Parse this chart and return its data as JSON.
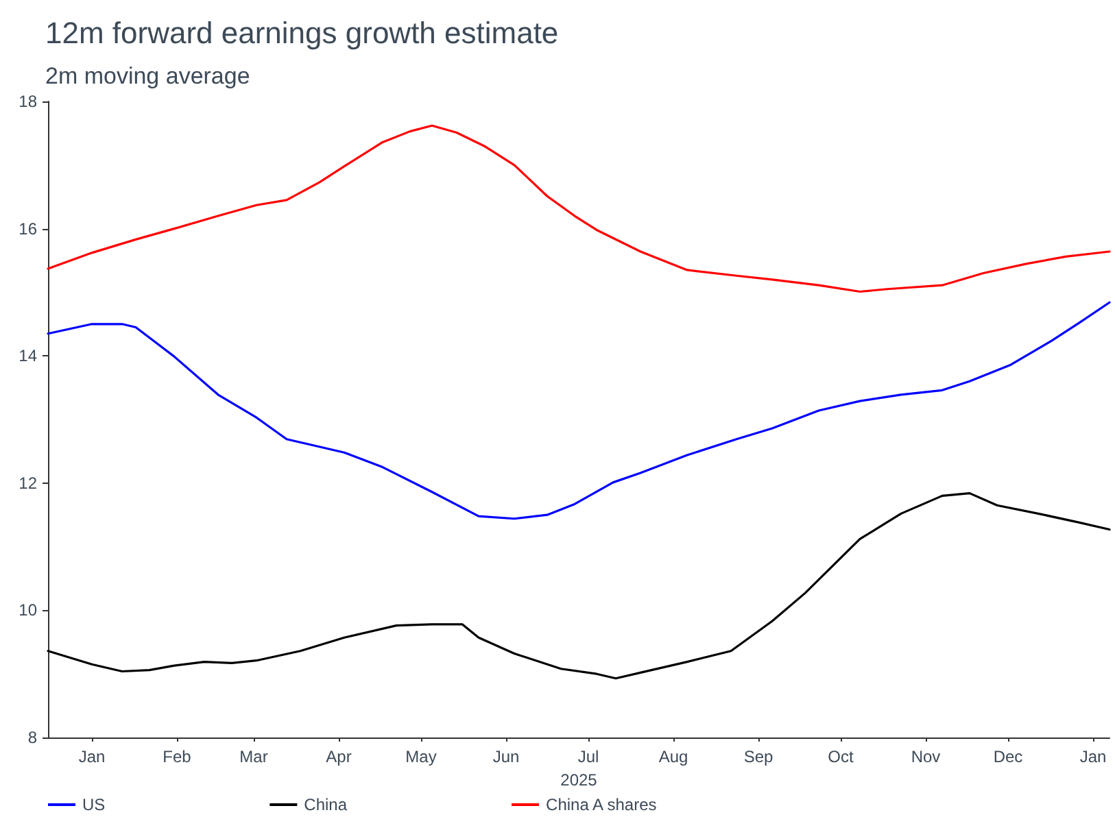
{
  "chart_data": {
    "type": "line",
    "title": "12m forward earnings growth estimate",
    "subtitle": "2m moving average",
    "xlabel": "2025",
    "xlim": [
      "2024-12-16",
      "2026-01-07"
    ],
    "xticks": [
      {
        "value": "2025-01-01",
        "label": "Jan"
      },
      {
        "value": "2025-02-01",
        "label": "Feb"
      },
      {
        "value": "2025-03-01",
        "label": "Mar"
      },
      {
        "value": "2025-04-01",
        "label": "Apr"
      },
      {
        "value": "2025-05-01",
        "label": "May"
      },
      {
        "value": "2025-06-01",
        "label": "Jun"
      },
      {
        "value": "2025-07-01",
        "label": "Jul"
      },
      {
        "value": "2025-08-01",
        "label": "Aug"
      },
      {
        "value": "2025-09-01",
        "label": "Sep"
      },
      {
        "value": "2025-10-01",
        "label": "Oct"
      },
      {
        "value": "2025-11-01",
        "label": "Nov"
      },
      {
        "value": "2025-12-01",
        "label": "Dec"
      },
      {
        "value": "2026-01-01",
        "label": "Jan"
      }
    ],
    "ylim": [
      8,
      18
    ],
    "yticks": [
      8,
      10,
      12,
      14,
      16,
      18
    ],
    "grid": false,
    "legend": "bottom",
    "marker": "none",
    "line_style": "solid",
    "series": [
      {
        "name": "US",
        "color": "#0000ff",
        "x": [
          "2024-12-16",
          "2025-01-01",
          "2025-01-12",
          "2025-01-17",
          "2025-01-31",
          "2025-02-16",
          "2025-03-02",
          "2025-03-13",
          "2025-03-23",
          "2025-04-03",
          "2025-04-17",
          "2025-05-05",
          "2025-05-22",
          "2025-06-04",
          "2025-06-16",
          "2025-06-26",
          "2025-07-10",
          "2025-07-20",
          "2025-08-06",
          "2025-08-24",
          "2025-09-06",
          "2025-09-23",
          "2025-10-08",
          "2025-10-23",
          "2025-11-07",
          "2025-11-17",
          "2025-12-02",
          "2025-12-17",
          "2025-12-27",
          "2026-01-07"
        ],
        "values": [
          14.35,
          14.5,
          14.5,
          14.45,
          13.99,
          13.39,
          13.03,
          12.69,
          12.59,
          12.48,
          12.25,
          11.86,
          11.48,
          11.44,
          11.5,
          11.67,
          12.01,
          12.16,
          12.44,
          12.69,
          12.86,
          13.14,
          13.29,
          13.39,
          13.46,
          13.6,
          13.86,
          14.24,
          14.52,
          14.84
        ]
      },
      {
        "name": "China",
        "color": "#000000",
        "x": [
          "2024-12-16",
          "2025-01-01",
          "2025-01-12",
          "2025-01-22",
          "2025-01-31",
          "2025-02-11",
          "2025-02-21",
          "2025-03-02",
          "2025-03-18",
          "2025-04-03",
          "2025-04-22",
          "2025-05-05",
          "2025-05-16",
          "2025-05-22",
          "2025-06-04",
          "2025-06-21",
          "2025-07-04",
          "2025-07-11",
          "2025-07-20",
          "2025-08-06",
          "2025-08-22",
          "2025-09-06",
          "2025-09-18",
          "2025-10-08",
          "2025-10-23",
          "2025-11-07",
          "2025-11-17",
          "2025-11-27",
          "2025-12-12",
          "2025-12-27",
          "2026-01-07"
        ],
        "values": [
          9.36,
          9.15,
          9.04,
          9.06,
          9.13,
          9.19,
          9.17,
          9.21,
          9.36,
          9.57,
          9.76,
          9.78,
          9.78,
          9.57,
          9.32,
          9.08,
          9.0,
          8.93,
          9.02,
          9.19,
          9.36,
          9.83,
          10.27,
          11.12,
          11.52,
          11.8,
          11.84,
          11.65,
          11.52,
          11.38,
          11.27
        ]
      },
      {
        "name": "China A shares",
        "color": "#ff0000",
        "x": [
          "2024-12-16",
          "2025-01-01",
          "2025-01-17",
          "2025-01-31",
          "2025-02-16",
          "2025-03-02",
          "2025-03-13",
          "2025-03-25",
          "2025-04-03",
          "2025-04-17",
          "2025-04-27",
          "2025-05-05",
          "2025-05-14",
          "2025-05-24",
          "2025-06-04",
          "2025-06-16",
          "2025-06-26",
          "2025-07-04",
          "2025-07-20",
          "2025-08-06",
          "2025-08-24",
          "2025-09-06",
          "2025-09-23",
          "2025-10-08",
          "2025-10-18",
          "2025-11-07",
          "2025-11-22",
          "2025-12-08",
          "2025-12-22",
          "2026-01-07"
        ],
        "values": [
          15.37,
          15.62,
          15.83,
          16.0,
          16.2,
          16.37,
          16.45,
          16.73,
          16.98,
          17.36,
          17.53,
          17.62,
          17.51,
          17.3,
          17.0,
          16.51,
          16.2,
          15.98,
          15.64,
          15.35,
          15.26,
          15.2,
          15.11,
          15.01,
          15.05,
          15.11,
          15.3,
          15.45,
          15.56,
          15.64
        ]
      }
    ]
  }
}
